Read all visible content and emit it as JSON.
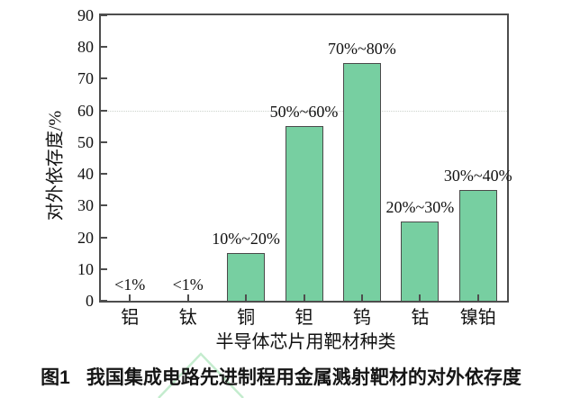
{
  "figure": {
    "caption_label": "图1",
    "caption_title": "我国集成电路先进制程用金属溅射靶材的对外依存度"
  },
  "chart_data": {
    "type": "bar",
    "title": "",
    "categories": [
      "铝",
      "钛",
      "铜",
      "钽",
      "钨",
      "钴",
      "镍铂"
    ],
    "values": [
      null,
      null,
      15,
      55,
      75,
      25,
      35
    ],
    "bar_labels": [
      "<1%",
      "<1%",
      "10%~20%",
      "50%~60%",
      "70%~80%",
      "20%~30%",
      "30%~40%"
    ],
    "xlabel": "半导体芯片用靶材种类",
    "ylabel": "对外依存度/%",
    "ylim": [
      0,
      90
    ],
    "ytick_step": 10,
    "yticks": [
      0,
      10,
      20,
      30,
      40,
      50,
      60,
      70,
      80,
      90
    ],
    "reference_line": 60,
    "grid": "single faint dotted horizontal line at y=60 only",
    "legend_position": "none",
    "bar_color": "#77cfa1",
    "bar_border_color": "#4a4a4a",
    "axis_color": "#4d4d4d",
    "text_color": "#111111",
    "watermark_color": "#c4ecce"
  }
}
